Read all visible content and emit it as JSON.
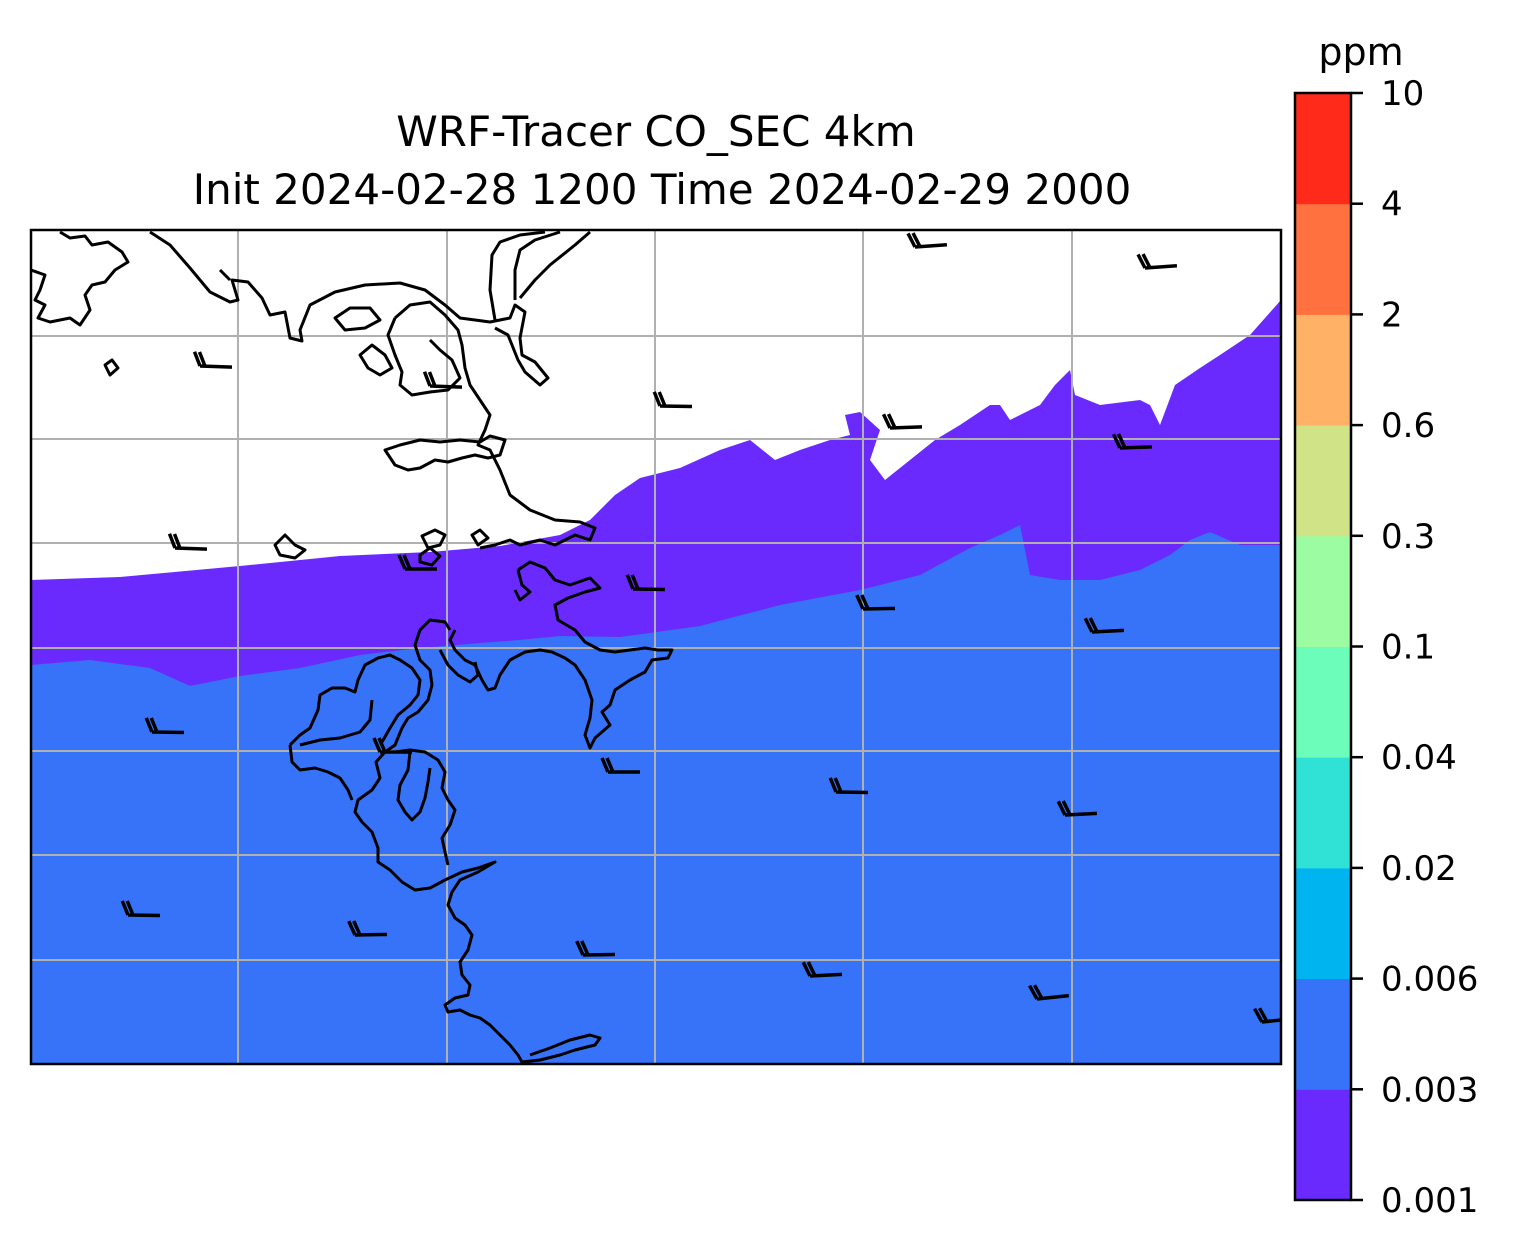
{
  "title": {
    "line1": "WRF-Tracer CO_SEC 4km",
    "line2": "Init 2024-02-28 1200 Time 2024-02-29 2000"
  },
  "colorbar": {
    "unit": "ppm",
    "levels": [
      "0.001",
      "0.003",
      "0.006",
      "0.02",
      "0.04",
      "0.1",
      "0.3",
      "0.6",
      "2",
      "4",
      "10"
    ],
    "colors": [
      "#6a2afe",
      "#3673f8",
      "#00b4ef",
      "#30e1d6",
      "#6cfdba",
      "#9cfca2",
      "#d0e386",
      "#ffb266",
      "#ff7240",
      "#ff2a1a"
    ]
  },
  "chart_data": {
    "type": "heatmap",
    "field": "CO_SEC tracer concentration",
    "units": "ppm",
    "contour_levels": [
      0.001,
      0.003,
      0.006,
      0.02,
      0.04,
      0.1,
      0.3,
      0.6,
      2,
      4,
      10
    ],
    "regions": [
      {
        "band": "below 0.001",
        "color": "#ffffff",
        "location": "north (land / upper portion)"
      },
      {
        "band": "0.001-0.003",
        "color": "#6a2afe",
        "location": "transition band across middle"
      },
      {
        "band": "0.003-0.006",
        "color": "#3673f8",
        "location": "south (lower portion)"
      }
    ],
    "gridlines": true,
    "wind_barbs": true,
    "legend_placement": "right colorbar"
  }
}
